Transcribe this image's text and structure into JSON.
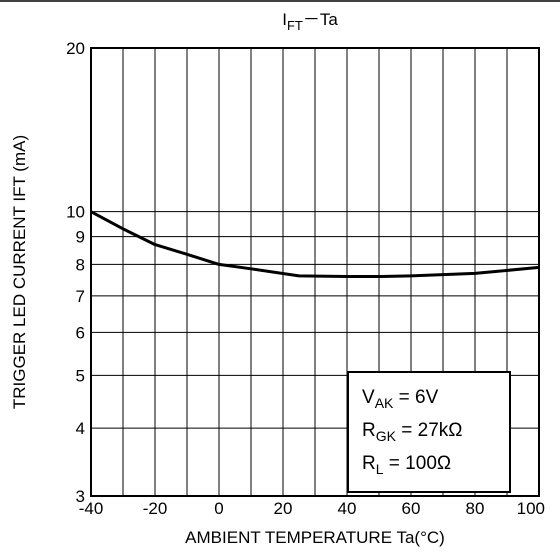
{
  "chart_data": {
    "type": "line",
    "title": {
      "main": "I",
      "sub": "FT",
      "rest": "－Ta"
    },
    "xlabel": "AMBIENT TEMPERATURE Ta(°C)",
    "ylabel": "TRIGGER LED CURRENT IFT (mA)",
    "xlim": [
      -40,
      100
    ],
    "ylim": [
      3,
      20
    ],
    "yscale": "log",
    "grid": true,
    "xticks": [
      "-40",
      "-20",
      "0",
      "20",
      "40",
      "60",
      "80",
      "100"
    ],
    "yticks": [
      "3",
      "4",
      "5",
      "6",
      "7",
      "8",
      "9",
      "10",
      "20"
    ],
    "series": [
      {
        "x": [
          -40,
          -30,
          -20,
          -10,
          0,
          10,
          25,
          40,
          50,
          60,
          80,
          100
        ],
        "y": [
          10.0,
          9.3,
          8.7,
          8.35,
          8.0,
          7.85,
          7.62,
          7.6,
          7.6,
          7.62,
          7.7,
          7.9
        ]
      }
    ],
    "conditions": [
      {
        "main": "V",
        "sub": "AK",
        "rest": " = 6V"
      },
      {
        "main": "R",
        "sub": "GK",
        "rest": " = 27kΩ"
      },
      {
        "main": "R",
        "sub": "L",
        "rest": " = 100Ω"
      }
    ],
    "legend_position": "bottom-right"
  }
}
